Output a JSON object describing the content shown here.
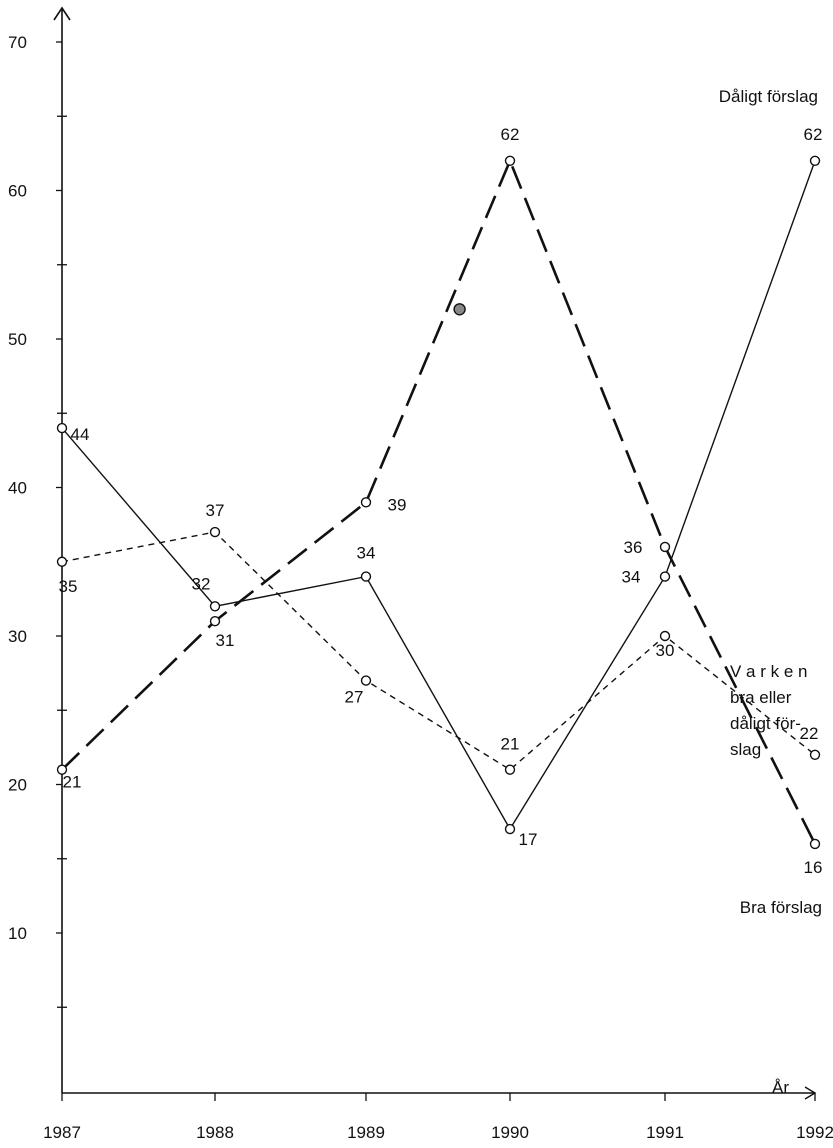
{
  "chart_data": {
    "type": "line",
    "xlabel": "År",
    "ylabel": "",
    "ylim": [
      0,
      70
    ],
    "yticks": [
      10,
      20,
      30,
      40,
      50,
      60,
      70
    ],
    "x": [
      "1987",
      "1988",
      "1989",
      "1990",
      "1991",
      "1992"
    ],
    "series": [
      {
        "name": "Dåligt förslag",
        "style": "solid",
        "values": [
          44,
          32,
          34,
          17,
          34,
          62
        ],
        "labels": [
          "44",
          "32",
          "34",
          "17",
          "34",
          "62"
        ]
      },
      {
        "name": "Varken bra eller dåligt förslag",
        "style": "short-dash",
        "values": [
          35,
          37,
          27,
          21,
          30,
          22
        ],
        "labels": [
          "35",
          "37",
          "27",
          "21",
          "30",
          "22"
        ]
      },
      {
        "name": "Bra förslag",
        "style": "long-dash",
        "values": [
          21,
          31,
          39,
          62,
          36,
          16
        ],
        "labels": [
          "21",
          "31",
          "39",
          "62",
          "36",
          "16"
        ]
      }
    ],
    "extra_points": [
      {
        "series": "Bra förslag",
        "x": 1989.65,
        "y": 52
      }
    ],
    "legend_lines": {
      "bad": [
        "Dåligt förslag"
      ],
      "neither": [
        "V a r k e n",
        "bra   eller",
        "dåligt  för-",
        "slag"
      ],
      "good": [
        "Bra  förslag"
      ]
    }
  }
}
